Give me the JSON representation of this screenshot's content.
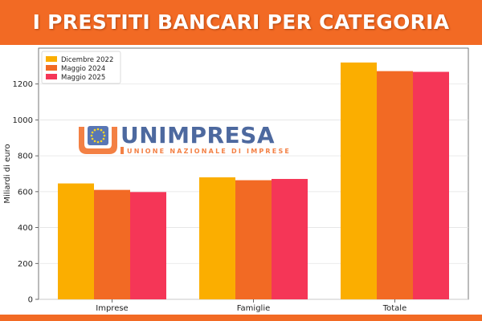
{
  "header": {
    "title": "I PRESTITI BANCARI PER CATEGORIA"
  },
  "logo": {
    "name": "UNIMPRESA",
    "subtitle": "UNIONE NAZIONALE DI IMPRESE",
    "icon": "eu-stars-icon",
    "colors": {
      "brand_blue": "#2f4f8f",
      "brand_orange": "#f26a24"
    }
  },
  "colors": {
    "banner": "#f26a24"
  },
  "chart_data": {
    "type": "bar",
    "ylabel": "Miliardi di euro",
    "xlabel": "",
    "categories": [
      "Imprese",
      "Famiglie",
      "Totale"
    ],
    "series": [
      {
        "name": "Dicembre 2022",
        "color": "#fbae00",
        "values": [
          646,
          680,
          1320
        ]
      },
      {
        "name": "Maggio 2024",
        "color": "#f26a24",
        "values": [
          610,
          664,
          1272
        ]
      },
      {
        "name": "Maggio 2025",
        "color": "#f53657",
        "values": [
          598,
          671,
          1268
        ]
      }
    ],
    "ylim": [
      0,
      1400
    ],
    "yticks": [
      0,
      200,
      400,
      600,
      800,
      1000,
      1200
    ],
    "grid": true,
    "legend_position": "top-left"
  }
}
